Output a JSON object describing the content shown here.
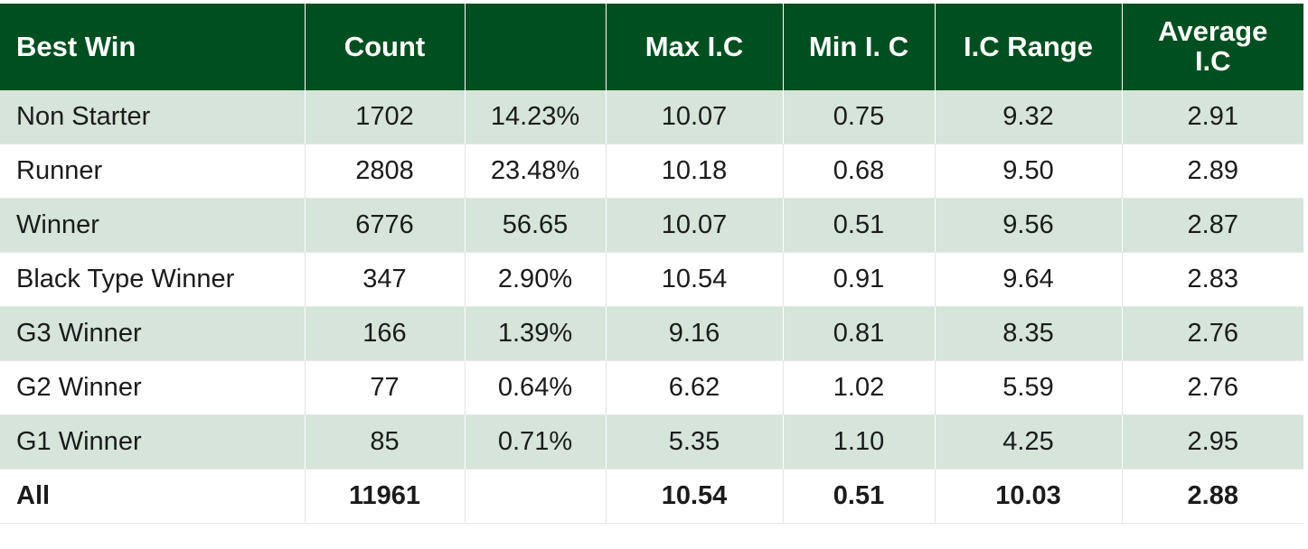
{
  "chart_data": {
    "type": "table",
    "columns": [
      "Best Win",
      "Count",
      "",
      "Max I.C",
      "Min I. C",
      "I.C Range",
      "Average I.C"
    ],
    "rows": [
      [
        "Non Starter",
        "1702",
        "14.23%",
        "10.07",
        "0.75",
        "9.32",
        "2.91"
      ],
      [
        "Runner",
        "2808",
        "23.48%",
        "10.18",
        "0.68",
        "9.50",
        "2.89"
      ],
      [
        "Winner",
        "6776",
        "56.65",
        "10.07",
        "0.51",
        "9.56",
        "2.87"
      ],
      [
        "Black Type Winner",
        "347",
        "2.90%",
        "10.54",
        "0.91",
        "9.64",
        "2.83"
      ],
      [
        "G3 Winner",
        "166",
        "1.39%",
        "9.16",
        "0.81",
        "8.35",
        "2.76"
      ],
      [
        "G2 Winner",
        "77",
        "0.64%",
        "6.62",
        "1.02",
        "5.59",
        "2.76"
      ],
      [
        "G1 Winner",
        "85",
        "0.71%",
        "5.35",
        "1.10",
        "4.25",
        "2.95"
      ]
    ],
    "total_row": [
      "All",
      "11961",
      "",
      "10.54",
      "0.51",
      "10.03",
      "2.88"
    ],
    "colors": {
      "header_bg": "#004f21",
      "header_text": "#ffffff",
      "stripe_bg": "#d6e4da"
    }
  }
}
